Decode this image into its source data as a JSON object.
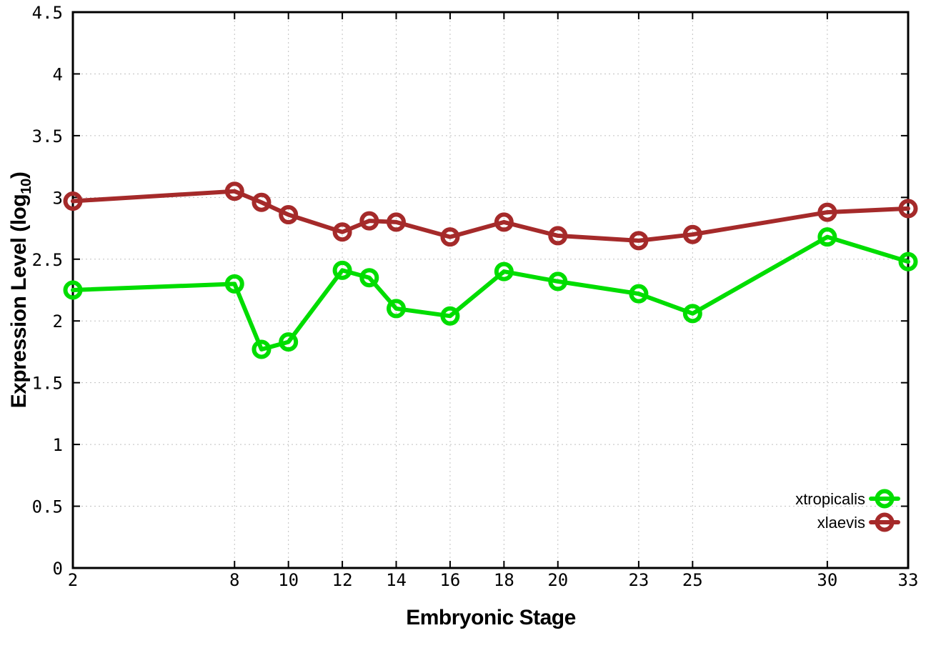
{
  "chart_data": {
    "type": "line",
    "title": "",
    "xlabel": "Embryonic Stage",
    "ylabel": "Expression Level (log10)",
    "ylabel_parts": {
      "prefix": "Expression Level (log",
      "sub": "10",
      "suffix": ")"
    },
    "x": [
      2,
      8,
      9,
      10,
      12,
      13,
      14,
      16,
      18,
      20,
      23,
      25,
      30,
      33
    ],
    "series": [
      {
        "name": "xtropicalis",
        "color": "#00dd00",
        "marker": "open-circle",
        "values": [
          2.25,
          2.3,
          1.77,
          1.83,
          2.41,
          2.35,
          2.1,
          2.04,
          2.4,
          2.32,
          2.22,
          2.06,
          2.68,
          2.48
        ]
      },
      {
        "name": "xlaevis",
        "color": "#a52a2a",
        "marker": "open-circle",
        "values": [
          2.97,
          3.05,
          2.96,
          2.86,
          2.72,
          2.81,
          2.8,
          2.68,
          2.8,
          2.69,
          2.65,
          2.7,
          2.88,
          2.91
        ]
      }
    ],
    "xlim": [
      2,
      33
    ],
    "ylim": [
      0,
      4.5
    ],
    "xticks": [
      2,
      8,
      10,
      12,
      14,
      16,
      18,
      20,
      23,
      25,
      30,
      33
    ],
    "xtick_labels": [
      "2",
      "8",
      "10",
      "12",
      "14",
      "16",
      "18",
      "20",
      "23",
      "25",
      "30",
      "33"
    ],
    "yticks": [
      0,
      0.5,
      1,
      1.5,
      2,
      2.5,
      3,
      3.5,
      4,
      4.5
    ],
    "ytick_labels": [
      "0",
      "0.5",
      "1",
      "1.5",
      "2",
      "2.5",
      "3",
      "3.5",
      "4",
      "4.5"
    ],
    "grid": true,
    "legend": {
      "position": "inside-bottom-right",
      "entries": [
        "xtropicalis",
        "xlaevis"
      ]
    }
  },
  "styles": {
    "background": "#ffffff",
    "grid_color": "#c0c0c0",
    "axis_color": "#000000",
    "text_color": "#000000"
  }
}
